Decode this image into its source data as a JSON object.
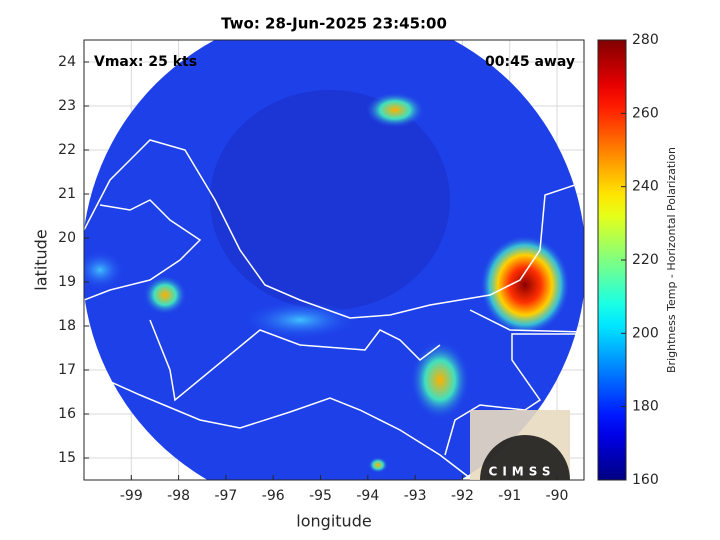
{
  "chart_data": {
    "type": "map",
    "title": "Two: 28-Jun-2025 23:45:00",
    "annotations": [
      "Vmax: 25 kts",
      "00:45 away"
    ],
    "x_label": "longitude",
    "y_label": "latitude",
    "xlim": [
      -100,
      -89.43
    ],
    "ylim": [
      14.5,
      24.5
    ],
    "xticks": [
      -99,
      -98,
      -97,
      -96,
      -95,
      -94,
      -93,
      -92,
      -91,
      -90
    ],
    "yticks": [
      15,
      16,
      17,
      18,
      19,
      20,
      21,
      22,
      23,
      24
    ],
    "grid": true,
    "colorbar": {
      "label": "Brightness Temp - Horizontal Polarization",
      "lim": [
        160,
        280
      ],
      "ticks": [
        160,
        180,
        200,
        220,
        240,
        260,
        280
      ],
      "colormap": "jet"
    },
    "logo": "CIMSS"
  }
}
